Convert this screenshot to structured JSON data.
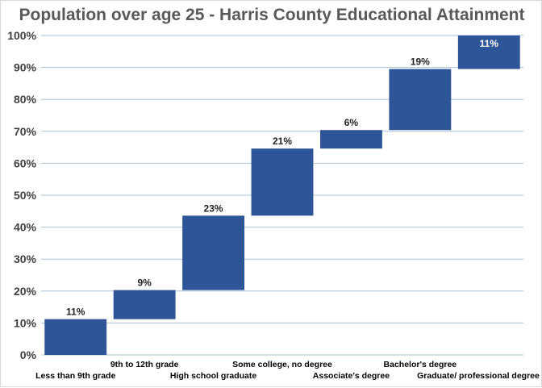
{
  "chart_data": {
    "type": "bar",
    "variant": "waterfall",
    "title": "Population over age 25 - Harris County Educational Attainment",
    "categories": [
      "Less than 9th grade",
      "9th to 12th grade",
      "High school graduate",
      "Some college, no degree",
      "Associate's degree",
      "Bachelor's degree",
      "Graduate/ professional degree"
    ],
    "values": [
      11,
      9,
      23,
      21,
      6,
      19,
      11
    ],
    "data_labels": [
      "11%",
      "9%",
      "23%",
      "21%",
      "6%",
      "19%",
      "11%"
    ],
    "start": [
      0,
      11.2,
      20.3,
      43.6,
      64.6,
      70.4,
      89.5
    ],
    "end": [
      11.2,
      20.3,
      43.6,
      64.6,
      70.4,
      89.5,
      100
    ],
    "ylim": [
      0,
      100
    ],
    "yticks": [
      0,
      10,
      20,
      30,
      40,
      50,
      60,
      70,
      80,
      90,
      100
    ],
    "ytick_labels": [
      "0%",
      "10%",
      "20%",
      "30%",
      "40%",
      "50%",
      "60%",
      "70%",
      "80%",
      "90%",
      "100%"
    ],
    "xlabel": "",
    "ylabel": "",
    "grid": true,
    "legend": "none",
    "colors": {
      "bar": "#2e5597",
      "gridline": "#a6c3da",
      "label": "#1f1f1f",
      "label_inside": "#ffffff"
    }
  }
}
